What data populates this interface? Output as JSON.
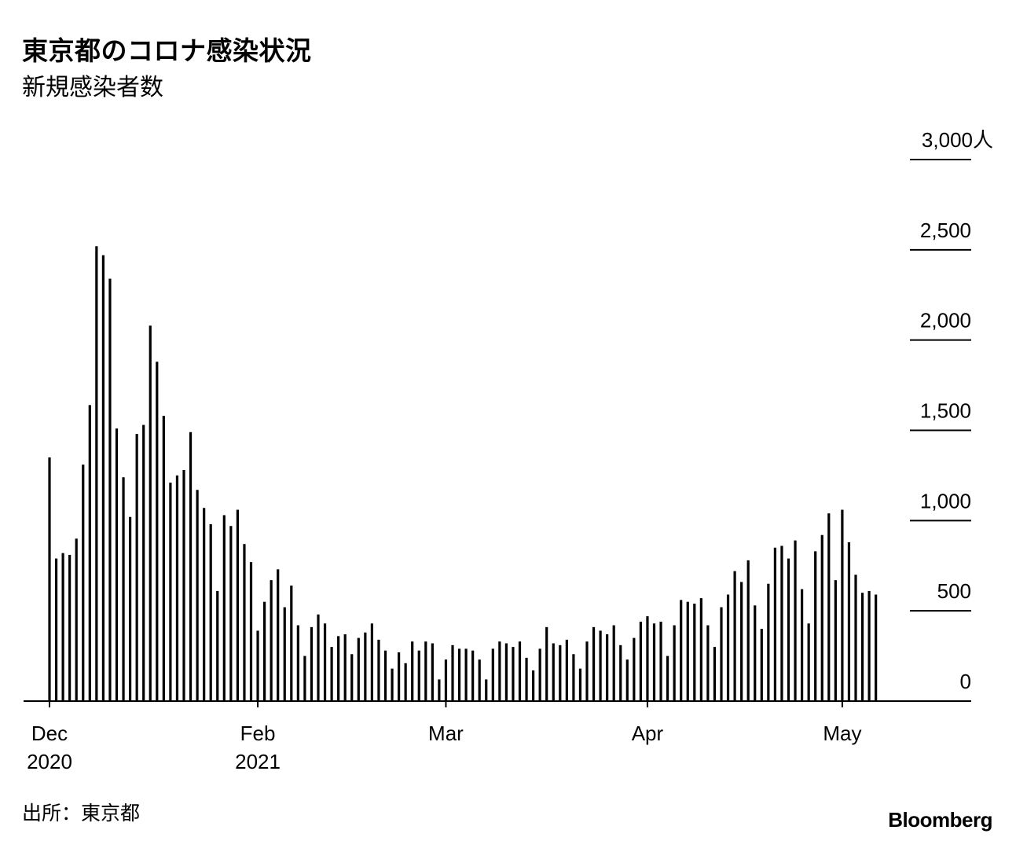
{
  "title": "東京都のコロナ感染状況",
  "subtitle": "新規感染者数",
  "source": "出所：東京都",
  "brand": "Bloomberg",
  "chart_data": {
    "type": "bar",
    "title": "東京都のコロナ感染状況",
    "subtitle": "新規感染者数",
    "ylim": [
      0,
      3000
    ],
    "yticks": [
      0,
      500,
      1000,
      1500,
      2000,
      2500,
      3000
    ],
    "ytick_labels": [
      "0",
      "500",
      "1,000",
      "1,500",
      "2,000",
      "2,500",
      "3,000人"
    ],
    "xticks": [
      {
        "index": 0,
        "month": "Dec",
        "year": "2020"
      },
      {
        "index": 31,
        "month": "Feb",
        "year": "2021"
      },
      {
        "index": 59,
        "month": "Mar",
        "year": ""
      },
      {
        "index": 89,
        "month": "Apr",
        "year": ""
      },
      {
        "index": 118,
        "month": "May",
        "year": ""
      }
    ],
    "grid": true,
    "bar_color": "#000000",
    "values": [
      1350,
      790,
      820,
      810,
      900,
      1310,
      1640,
      2520,
      2470,
      2340,
      1510,
      1240,
      1020,
      1480,
      1530,
      2080,
      1880,
      1580,
      1210,
      1250,
      1280,
      1490,
      1170,
      1070,
      980,
      610,
      1030,
      970,
      1060,
      870,
      770,
      390,
      550,
      670,
      730,
      520,
      640,
      420,
      250,
      410,
      480,
      430,
      300,
      360,
      370,
      260,
      350,
      380,
      430,
      340,
      280,
      180,
      270,
      210,
      330,
      280,
      330,
      320,
      120,
      230,
      310,
      290,
      290,
      280,
      230,
      120,
      290,
      330,
      320,
      300,
      330,
      240,
      170,
      290,
      410,
      320,
      310,
      340,
      260,
      180,
      330,
      410,
      390,
      370,
      420,
      310,
      230,
      350,
      440,
      470,
      430,
      440,
      250,
      420,
      560,
      550,
      540,
      570,
      420,
      300,
      520,
      590,
      720,
      660,
      780,
      530,
      400,
      650,
      850,
      860,
      790,
      890,
      620,
      430,
      830,
      920,
      1040,
      670,
      1060,
      880,
      700,
      600,
      610,
      590
    ]
  }
}
